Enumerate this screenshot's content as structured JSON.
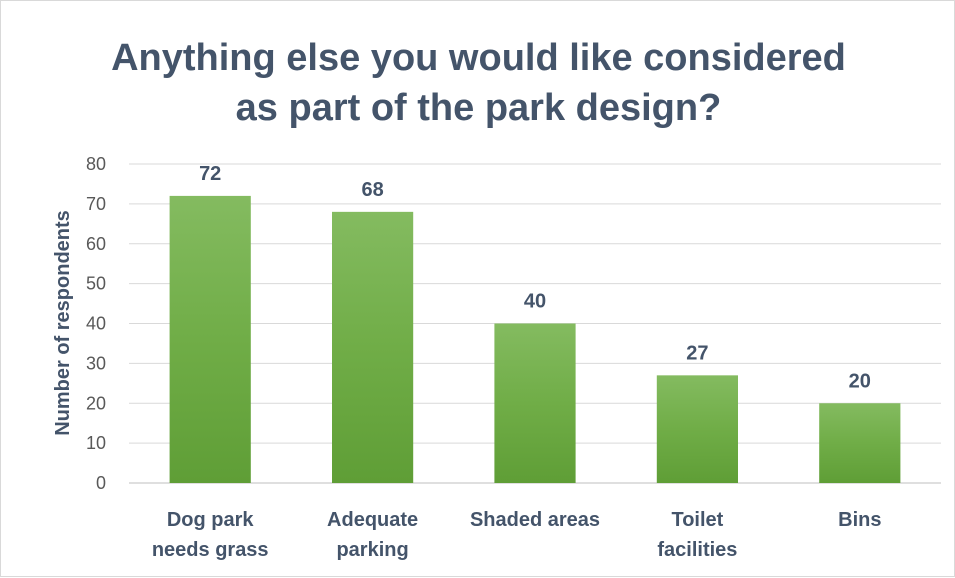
{
  "chart_data": {
    "type": "bar",
    "title": "Anything else you would like considered as part of the park design?",
    "ylabel": "Number of respondents",
    "xlabel": "",
    "categories": [
      "Dog park needs grass",
      "Adequate parking",
      "Shaded areas",
      "Toilet facilities",
      "Bins"
    ],
    "values": [
      72,
      68,
      40,
      27,
      20
    ],
    "ylim": [
      0,
      80
    ],
    "yticks": [
      0,
      10,
      20,
      30,
      40,
      50,
      60,
      70,
      80
    ],
    "grid": true,
    "legend": "none",
    "bar_color": "#70ad47"
  }
}
